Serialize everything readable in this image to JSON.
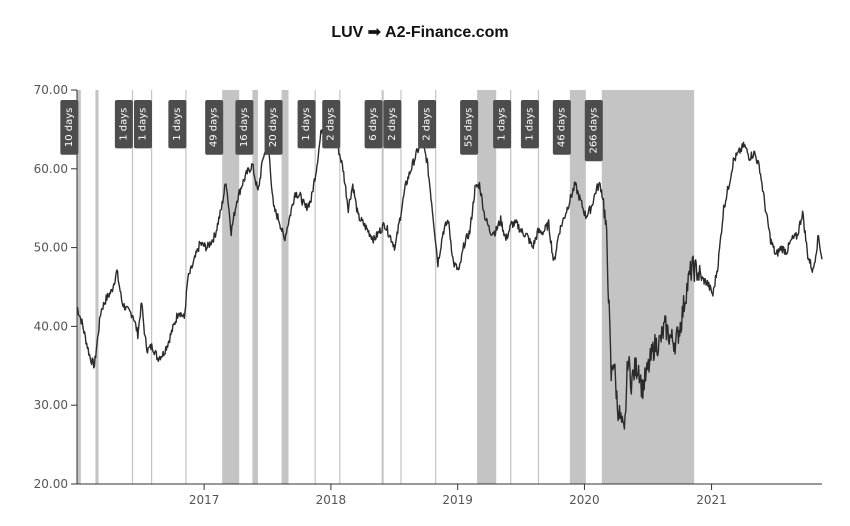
{
  "chart_data": {
    "type": "line",
    "title": "LUV ➟ A2-Finance.com",
    "xlabel": "",
    "ylabel": "",
    "x_domain": [
      "2016-01-01",
      "2021-11-15"
    ],
    "ylim": [
      20,
      70
    ],
    "y_ticks": [
      20,
      30,
      40,
      50,
      60,
      70
    ],
    "y_tick_labels": [
      "20.00",
      "30.00",
      "40.00",
      "50.00",
      "60.00",
      "70.00"
    ],
    "x_ticks": [
      "2017-01-01",
      "2018-01-01",
      "2019-01-01",
      "2020-01-01",
      "2021-01-01"
    ],
    "x_tick_labels": [
      "2017",
      "2018",
      "2019",
      "2020",
      "2021"
    ],
    "grid": false,
    "colors": {
      "line": "#2b2b2b",
      "shade": "#c4c4c4",
      "badge": "#4d4d4d",
      "axis": "#333333"
    },
    "drawdowns": [
      {
        "start": "2016-01-02",
        "end": "2016-01-12",
        "label": "10 days"
      },
      {
        "start": "2016-02-23",
        "end": "2016-03-03",
        "label": ""
      },
      {
        "start": "2016-06-07",
        "end": "2016-06-08",
        "label": "1 days"
      },
      {
        "start": "2016-08-01",
        "end": "2016-08-02",
        "label": "1 days"
      },
      {
        "start": "2016-11-08",
        "end": "2016-11-09",
        "label": "1 days"
      },
      {
        "start": "2017-02-22",
        "end": "2017-04-12",
        "label": "49 days"
      },
      {
        "start": "2017-05-20",
        "end": "2017-06-05",
        "label": "16 days"
      },
      {
        "start": "2017-08-12",
        "end": "2017-09-01",
        "label": "20 days"
      },
      {
        "start": "2017-11-15",
        "end": "2017-11-16",
        "label": "1 days"
      },
      {
        "start": "2018-01-25",
        "end": "2018-01-27",
        "label": "2 days"
      },
      {
        "start": "2018-05-27",
        "end": "2018-06-02",
        "label": "6 days"
      },
      {
        "start": "2018-07-20",
        "end": "2018-07-22",
        "label": "2 days"
      },
      {
        "start": "2018-10-28",
        "end": "2018-10-30",
        "label": "2 days"
      },
      {
        "start": "2019-02-26",
        "end": "2019-04-22",
        "label": "55 days"
      },
      {
        "start": "2019-06-01",
        "end": "2019-06-02",
        "label": "1 days"
      },
      {
        "start": "2019-08-20",
        "end": "2019-08-21",
        "label": "1 days"
      },
      {
        "start": "2019-11-20",
        "end": "2020-01-05",
        "label": "46 days"
      },
      {
        "start": "2020-02-20",
        "end": "2020-11-12",
        "label": "266 days"
      }
    ],
    "series": [
      {
        "x": [
          "2016-01-01",
          "2016-01-15",
          "2016-02-08",
          "2016-02-20",
          "2016-03-10",
          "2016-03-25",
          "2016-04-10",
          "2016-04-25",
          "2016-05-10",
          "2016-05-25",
          "2016-06-10",
          "2016-06-24",
          "2016-07-05",
          "2016-07-15",
          "2016-07-22",
          "2016-08-05",
          "2016-08-20",
          "2016-09-05",
          "2016-09-20",
          "2016-10-05",
          "2016-10-20",
          "2016-11-05",
          "2016-11-15",
          "2016-12-01",
          "2016-12-20",
          "2017-01-10",
          "2017-02-01",
          "2017-02-20",
          "2017-03-05",
          "2017-03-20",
          "2017-04-05",
          "2017-04-20",
          "2017-05-05",
          "2017-05-20",
          "2017-06-05",
          "2017-06-20",
          "2017-07-05",
          "2017-07-20",
          "2017-08-05",
          "2017-08-20",
          "2017-09-05",
          "2017-09-20",
          "2017-10-05",
          "2017-10-20",
          "2017-11-05",
          "2017-11-20",
          "2017-12-05",
          "2017-12-20",
          "2018-01-05",
          "2018-01-20",
          "2018-02-05",
          "2018-02-20",
          "2018-03-05",
          "2018-03-20",
          "2018-04-05",
          "2018-04-20",
          "2018-05-05",
          "2018-05-20",
          "2018-06-05",
          "2018-06-20",
          "2018-07-05",
          "2018-07-20",
          "2018-08-05",
          "2018-08-20",
          "2018-09-05",
          "2018-09-20",
          "2018-10-05",
          "2018-10-20",
          "2018-11-05",
          "2018-11-20",
          "2018-12-05",
          "2018-12-20",
          "2019-01-05",
          "2019-01-20",
          "2019-02-05",
          "2019-02-20",
          "2019-03-05",
          "2019-03-20",
          "2019-04-05",
          "2019-04-20",
          "2019-05-05",
          "2019-05-20",
          "2019-06-05",
          "2019-06-20",
          "2019-07-05",
          "2019-07-20",
          "2019-08-05",
          "2019-08-20",
          "2019-09-05",
          "2019-09-20",
          "2019-10-05",
          "2019-10-20",
          "2019-11-05",
          "2019-11-20",
          "2019-12-05",
          "2019-12-20",
          "2020-01-05",
          "2020-01-20",
          "2020-02-05",
          "2020-02-15",
          "2020-02-25",
          "2020-03-05",
          "2020-03-12",
          "2020-03-18",
          "2020-03-25",
          "2020-04-05",
          "2020-04-15",
          "2020-04-25",
          "2020-05-05",
          "2020-05-15",
          "2020-05-25",
          "2020-06-05",
          "2020-06-15",
          "2020-06-25",
          "2020-07-05",
          "2020-07-20",
          "2020-08-05",
          "2020-08-20",
          "2020-09-05",
          "2020-09-20",
          "2020-10-05",
          "2020-10-20",
          "2020-11-05",
          "2020-11-20",
          "2020-12-05",
          "2020-12-20",
          "2021-01-05",
          "2021-01-20",
          "2021-02-05",
          "2021-02-20",
          "2021-03-05",
          "2021-03-20",
          "2021-04-05",
          "2021-04-20",
          "2021-05-05",
          "2021-05-20",
          "2021-06-05",
          "2021-06-20",
          "2021-07-05",
          "2021-07-20",
          "2021-08-05",
          "2021-08-20",
          "2021-09-05",
          "2021-09-20",
          "2021-10-05",
          "2021-10-20",
          "2021-11-05",
          "2021-11-15"
        ],
        "y": [
          42.5,
          40.5,
          36.0,
          35.0,
          42.0,
          43.5,
          44.5,
          47.0,
          43.0,
          42.0,
          41.5,
          39.0,
          43.0,
          38.5,
          37.0,
          37.5,
          36.0,
          36.5,
          38.0,
          40.0,
          42.0,
          41.0,
          46.0,
          48.0,
          50.5,
          50.0,
          51.5,
          55.0,
          58.5,
          52.0,
          56.0,
          58.0,
          59.5,
          60.5,
          57.0,
          61.5,
          63.0,
          55.0,
          53.5,
          51.0,
          54.0,
          57.0,
          56.5,
          55.0,
          56.0,
          60.0,
          65.0,
          66.0,
          65.0,
          63.0,
          60.0,
          55.0,
          58.0,
          54.0,
          53.0,
          52.0,
          51.0,
          52.0,
          53.0,
          51.5,
          50.0,
          54.0,
          58.0,
          60.0,
          62.0,
          63.5,
          61.0,
          55.0,
          48.0,
          52.0,
          53.5,
          48.0,
          47.0,
          50.5,
          52.0,
          57.5,
          58.0,
          54.0,
          52.0,
          52.0,
          53.5,
          51.0,
          53.0,
          53.0,
          52.0,
          51.5,
          50.0,
          52.0,
          52.0,
          53.0,
          48.0,
          52.0,
          54.0,
          56.0,
          58.0,
          56.0,
          54.0,
          55.0,
          57.5,
          58.0,
          56.0,
          51.0,
          42.0,
          33.5,
          36.0,
          30.0,
          28.0,
          26.0,
          36.0,
          33.0,
          34.5,
          35.0,
          32.0,
          33.5,
          35.0,
          37.5,
          38.0,
          40.0,
          38.5,
          38.0,
          40.5,
          44.5,
          47.5,
          47.0,
          46.0,
          45.5,
          44.0,
          48.0,
          55.0,
          58.0,
          61.0,
          62.0,
          63.0,
          61.5,
          62.0,
          60.0,
          55.0,
          51.0,
          49.0,
          50.0,
          49.5,
          51.0,
          51.5,
          54.5,
          49.0,
          47.0,
          51.5,
          48.5
        ]
      }
    ]
  }
}
